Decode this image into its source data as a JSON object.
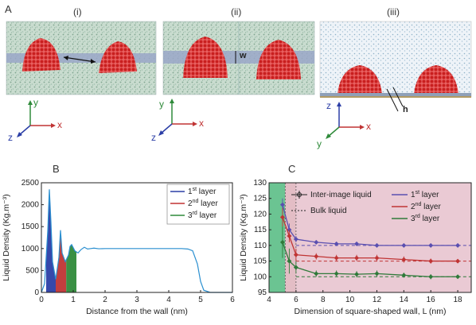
{
  "panel_a": {
    "letter": "A",
    "subpanels": [
      {
        "label": "(i)"
      },
      {
        "label": "(ii)",
        "annotation": "w"
      },
      {
        "label": "(iii)",
        "annotation": "h"
      }
    ],
    "axes_i": {
      "up": "y",
      "right": "x",
      "out": "z"
    },
    "axes_ii": {
      "up": "y",
      "right": "x",
      "out": "z"
    },
    "axes_iii": {
      "up": "z",
      "right": "x",
      "out": "y"
    },
    "colors": {
      "water": "#a8c7b8",
      "cluster": "#d42a2a",
      "wall": "#9aa7c8"
    }
  },
  "chart_data": [
    {
      "panel": "B",
      "type": "area",
      "xlabel": "Distance from the wall (nm)",
      "ylabel": "Liquid Density (Kg.m⁻³)",
      "xlim": [
        0,
        6
      ],
      "ylim": [
        0,
        2500
      ],
      "xticks": [
        "0",
        "1",
        "2",
        "3",
        "4",
        "5",
        "6"
      ],
      "yticks": [
        "0",
        "500",
        "1000",
        "1500",
        "2000",
        "2500"
      ],
      "legend": [
        {
          "pre": "1",
          "sup": "st",
          "post": " layer",
          "color": "#2b3ea6"
        },
        {
          "pre": "2",
          "sup": "nd",
          "post": " layer",
          "color": "#c03434"
        },
        {
          "pre": "3",
          "sup": "rd",
          "post": " layer",
          "color": "#2f8a3a"
        }
      ],
      "series": [
        {
          "x": [
            0,
            0.1,
            0.2,
            0.25,
            0.3,
            0.35,
            0.45,
            0.55,
            0.6,
            0.65,
            0.75,
            0.85,
            0.9,
            0.95,
            1.05,
            1.15,
            1.25,
            1.35,
            1.45,
            1.55,
            1.65,
            1.8,
            2.0,
            2.5,
            3.0,
            3.5,
            4.0,
            4.4,
            4.6,
            4.75,
            4.9,
            5.0,
            5.1,
            5.3,
            5.6,
            6.0
          ],
          "y": [
            0,
            200,
            1400,
            2350,
            1600,
            700,
            300,
            800,
            1420,
            900,
            700,
            850,
            1050,
            1090,
            950,
            900,
            980,
            1030,
            990,
            1000,
            1010,
            995,
            1000,
            1000,
            1000,
            1000,
            1000,
            1000,
            990,
            950,
            650,
            250,
            50,
            0,
            0,
            0
          ]
        }
      ],
      "layers": [
        {
          "name": "1st layer",
          "x": [
            0.15,
            0.45
          ],
          "color": "#2b3ea6"
        },
        {
          "name": "2nd layer",
          "x": [
            0.45,
            0.78
          ],
          "color": "#c03434"
        },
        {
          "name": "3rd layer",
          "x": [
            0.78,
            1.1
          ],
          "color": "#2f8a3a"
        }
      ]
    },
    {
      "panel": "C",
      "type": "line",
      "xlabel": "Dimension of square-shaped wall, L (nm)",
      "ylabel": "Liquid Density (Kg.m⁻³)",
      "xlim": [
        4,
        19
      ],
      "ylim": [
        95,
        130
      ],
      "xticks": [
        "4",
        "6",
        "8",
        "10",
        "12",
        "14",
        "16",
        "18"
      ],
      "yticks": [
        "95",
        "100",
        "105",
        "110",
        "115",
        "120",
        "125",
        "130"
      ],
      "legend": [
        {
          "text": "Inter-image liquid",
          "style": "errorbar"
        },
        {
          "text": "Bulk liquid",
          "style": "dotted"
        }
      ],
      "legend2": [
        {
          "pre": "1",
          "sup": "st",
          "post": " layer",
          "color": "#5a4fb0"
        },
        {
          "pre": "2",
          "sup": "nd",
          "post": " layer",
          "color": "#c03434"
        },
        {
          "pre": "3",
          "sup": "rd",
          "post": " layer",
          "color": "#2f7a3a"
        }
      ],
      "x": [
        5,
        5.5,
        6,
        7.5,
        9,
        10.5,
        12,
        14,
        16,
        18
      ],
      "series": [
        {
          "name": "1st layer",
          "values": [
            123,
            115,
            112,
            111,
            110.5,
            110.5,
            110,
            110,
            110,
            110
          ],
          "err": [
            2,
            2,
            1,
            0.5,
            0.5,
            0.5,
            0.5,
            0.5,
            0.5,
            0.5
          ],
          "color": "#5a4fb0",
          "bulk": 110
        },
        {
          "name": "2nd layer",
          "values": [
            119,
            113,
            107,
            106.5,
            106,
            106,
            106,
            105.5,
            105,
            105
          ],
          "err": [
            3,
            2,
            2,
            1,
            1,
            1,
            1,
            1,
            0.8,
            0.5
          ],
          "color": "#c03434",
          "bulk": 105
        },
        {
          "name": "3rd layer",
          "values": [
            111,
            105,
            103,
            101,
            101,
            100.8,
            101,
            100.5,
            100,
            100
          ],
          "err": [
            5,
            4,
            2,
            1,
            1,
            1,
            1,
            0.8,
            0.8,
            0.5
          ],
          "color": "#2f7a3a",
          "bulk": 100
        }
      ],
      "shading": [
        {
          "range": [
            4,
            5.2
          ],
          "color": "#3ab06e"
        },
        {
          "range": [
            5.2,
            6
          ],
          "color": "#d9a7b2"
        },
        {
          "range": [
            6,
            19
          ],
          "color": "#e3b8c6"
        }
      ]
    }
  ]
}
